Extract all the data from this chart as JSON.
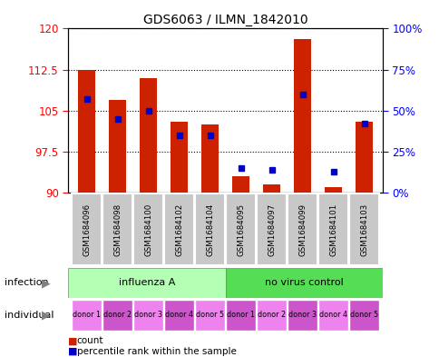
{
  "title": "GDS6063 / ILMN_1842010",
  "samples": [
    "GSM1684096",
    "GSM1684098",
    "GSM1684100",
    "GSM1684102",
    "GSM1684104",
    "GSM1684095",
    "GSM1684097",
    "GSM1684099",
    "GSM1684101",
    "GSM1684103"
  ],
  "red_values": [
    112.5,
    107.0,
    111.0,
    103.0,
    102.5,
    93.0,
    91.5,
    118.0,
    91.0,
    103.0
  ],
  "blue_pct": [
    57,
    45,
    50,
    35,
    35,
    15,
    14,
    60,
    13,
    42
  ],
  "y_min": 90,
  "y_max": 120,
  "y_ticks_left": [
    90,
    97.5,
    105,
    112.5,
    120
  ],
  "y_ticks_right": [
    0,
    25,
    50,
    75,
    100
  ],
  "bar_color": "#cc2200",
  "dot_color": "#0000cc",
  "label_bg_color": "#c8c8c8",
  "infection_color_light": "#b3ffb3",
  "infection_color_dark": "#55dd55",
  "individual_color_light": "#ee82ee",
  "individual_color_dark": "#cc44cc",
  "infection_group_split": 5,
  "infection_labels": [
    "influenza A",
    "no virus control"
  ],
  "individual_labels": [
    "donor 1",
    "donor 2",
    "donor 3",
    "donor 4",
    "donor 5",
    "donor 1",
    "donor 2",
    "donor 3",
    "donor 4",
    "donor 5"
  ]
}
